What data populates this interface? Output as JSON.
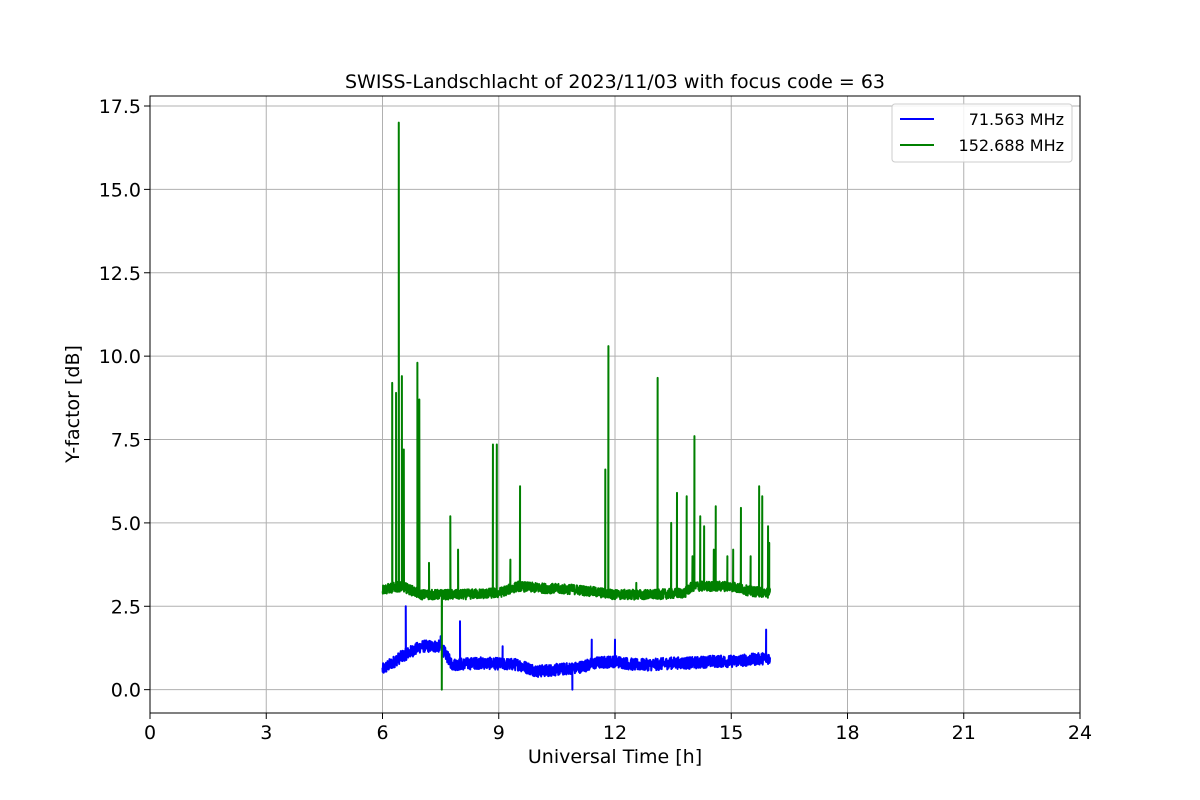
{
  "chart_data": {
    "type": "line",
    "title": "SWISS-Landschlacht of 2023/11/03 with focus code = 63",
    "xlabel": "Universal Time [h]",
    "ylabel": "Y-factor [dB]",
    "xlim": [
      0,
      24
    ],
    "ylim": [
      -0.7,
      17.8
    ],
    "xticks": [
      0,
      3,
      6,
      9,
      12,
      15,
      18,
      21,
      24
    ],
    "xtick_labels": [
      "0",
      "3",
      "6",
      "9",
      "12",
      "15",
      "18",
      "21",
      "24"
    ],
    "yticks": [
      0.0,
      2.5,
      5.0,
      7.5,
      10.0,
      12.5,
      15.0,
      17.5
    ],
    "ytick_labels": [
      "0.0",
      "2.5",
      "5.0",
      "7.5",
      "10.0",
      "12.5",
      "15.0",
      "17.5"
    ],
    "grid": true,
    "legend_position": "top-right",
    "series": [
      {
        "name": "71.563 MHz",
        "color": "#0000ff",
        "baseline": [
          [
            6.0,
            0.6
          ],
          [
            6.5,
            1.0
          ],
          [
            7.0,
            1.3
          ],
          [
            7.5,
            1.3
          ],
          [
            7.8,
            0.75
          ],
          [
            8.5,
            0.8
          ],
          [
            9.5,
            0.75
          ],
          [
            10.0,
            0.55
          ],
          [
            10.5,
            0.6
          ],
          [
            11.0,
            0.65
          ],
          [
            11.5,
            0.8
          ],
          [
            12.0,
            0.85
          ],
          [
            12.5,
            0.75
          ],
          [
            13.0,
            0.75
          ],
          [
            13.5,
            0.8
          ],
          [
            14.0,
            0.8
          ],
          [
            14.5,
            0.85
          ],
          [
            15.0,
            0.85
          ],
          [
            15.5,
            0.9
          ],
          [
            16.0,
            0.95
          ]
        ],
        "noise": 0.18,
        "spikes": [
          [
            6.6,
            2.5
          ],
          [
            8.0,
            2.05
          ],
          [
            9.1,
            1.3
          ],
          [
            10.9,
            0.0
          ],
          [
            11.4,
            1.5
          ],
          [
            12.0,
            1.5
          ],
          [
            15.9,
            1.8
          ],
          [
            7.5,
            1.6
          ]
        ]
      },
      {
        "name": "152.688 MHz",
        "color": "#008000",
        "baseline": [
          [
            6.0,
            3.0
          ],
          [
            6.5,
            3.1
          ],
          [
            7.0,
            2.85
          ],
          [
            8.0,
            2.85
          ],
          [
            9.0,
            2.9
          ],
          [
            9.5,
            3.1
          ],
          [
            10.0,
            3.05
          ],
          [
            11.0,
            3.0
          ],
          [
            12.0,
            2.85
          ],
          [
            13.0,
            2.85
          ],
          [
            13.8,
            2.9
          ],
          [
            14.0,
            3.1
          ],
          [
            15.0,
            3.1
          ],
          [
            15.5,
            2.95
          ],
          [
            16.0,
            2.9
          ]
        ],
        "noise": 0.15,
        "spikes": [
          [
            6.25,
            9.2
          ],
          [
            6.35,
            8.9
          ],
          [
            6.42,
            17.0
          ],
          [
            6.5,
            9.4
          ],
          [
            6.55,
            7.2
          ],
          [
            6.9,
            9.8
          ],
          [
            6.95,
            8.7
          ],
          [
            7.2,
            3.8
          ],
          [
            7.53,
            0.0
          ],
          [
            7.75,
            5.2
          ],
          [
            7.95,
            4.2
          ],
          [
            8.85,
            7.35
          ],
          [
            8.95,
            7.35
          ],
          [
            9.3,
            3.9
          ],
          [
            9.55,
            6.1
          ],
          [
            11.75,
            6.6
          ],
          [
            11.83,
            10.3
          ],
          [
            12.55,
            3.2
          ],
          [
            13.1,
            9.35
          ],
          [
            13.45,
            5.0
          ],
          [
            13.6,
            5.9
          ],
          [
            13.85,
            5.8
          ],
          [
            14.0,
            4.0
          ],
          [
            14.05,
            7.6
          ],
          [
            14.2,
            5.2
          ],
          [
            14.3,
            4.9
          ],
          [
            14.55,
            4.2
          ],
          [
            14.6,
            5.5
          ],
          [
            14.9,
            4.0
          ],
          [
            15.05,
            4.2
          ],
          [
            15.25,
            5.45
          ],
          [
            15.5,
            4.0
          ],
          [
            15.72,
            6.1
          ],
          [
            15.8,
            5.8
          ],
          [
            15.95,
            4.9
          ],
          [
            15.98,
            4.4
          ]
        ]
      }
    ]
  }
}
